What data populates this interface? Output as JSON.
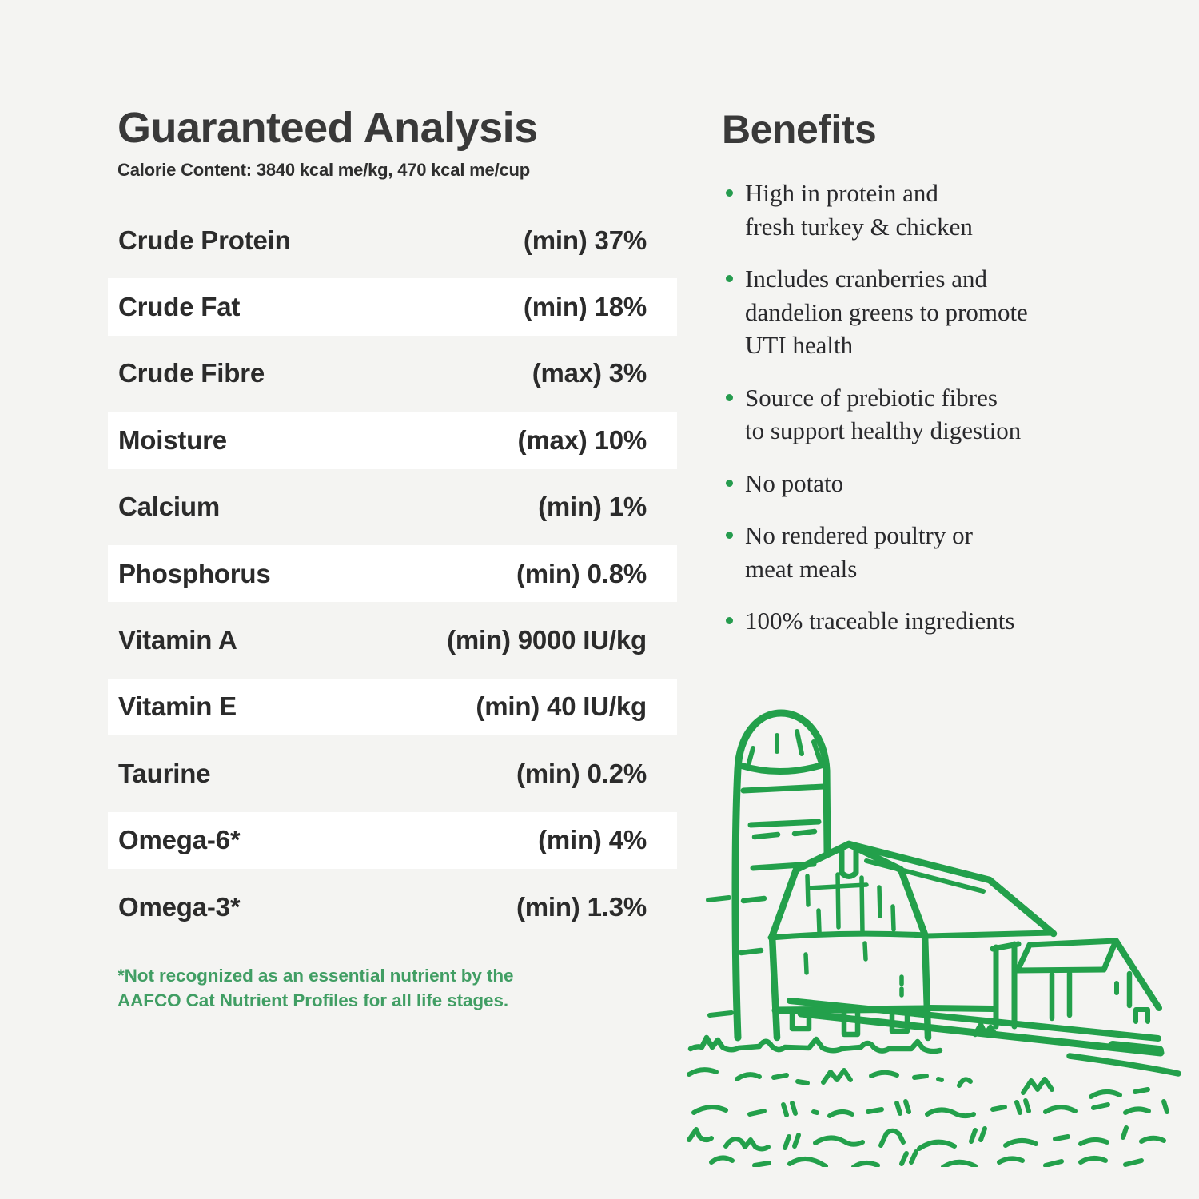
{
  "analysis": {
    "title": "Guaranteed Analysis",
    "calorie_content": "Calorie Content: 3840 kcal me/kg, 470 kcal me/cup",
    "rows": [
      {
        "label": "Crude Protein",
        "value": "(min) 37%"
      },
      {
        "label": "Crude Fat",
        "value": "(min) 18%"
      },
      {
        "label": "Crude Fibre",
        "value": "(max) 3%"
      },
      {
        "label": "Moisture",
        "value": "(max) 10%"
      },
      {
        "label": "Calcium",
        "value": "(min) 1%"
      },
      {
        "label": "Phosphorus",
        "value": "(min) 0.8%"
      },
      {
        "label": "Vitamin A",
        "value": "(min) 9000 IU/kg"
      },
      {
        "label": "Vitamin E",
        "value": "(min) 40 IU/kg"
      },
      {
        "label": "Taurine",
        "value": "(min) 0.2%"
      },
      {
        "label": "Omega-6*",
        "value": "(min) 4%"
      },
      {
        "label": "Omega-3*",
        "value": "(min) 1.3%"
      }
    ],
    "footnote": "*Not recognized as an essential nutrient by the\nAAFCO Cat Nutrient Profiles for all life stages."
  },
  "benefits": {
    "title": "Benefits",
    "items": [
      "High in protein and\nfresh turkey & chicken",
      "Includes cranberries and\ndandelion greens to promote\nUTI health",
      "Source of prebiotic fibres\nto support healthy digestion",
      "No potato",
      "No rendered poultry or\nmeat meals",
      "100% traceable ingredients"
    ]
  },
  "illustration": {
    "name": "farm-barn-silo-sketch",
    "color": "#23a04b"
  },
  "colors": {
    "background": "#f4f4f2",
    "heading_text": "#393939",
    "body_text": "#2b2b2b",
    "row_highlight": "#ffffff",
    "footnote_green": "#419e64",
    "bullet_green": "#259b4e"
  }
}
